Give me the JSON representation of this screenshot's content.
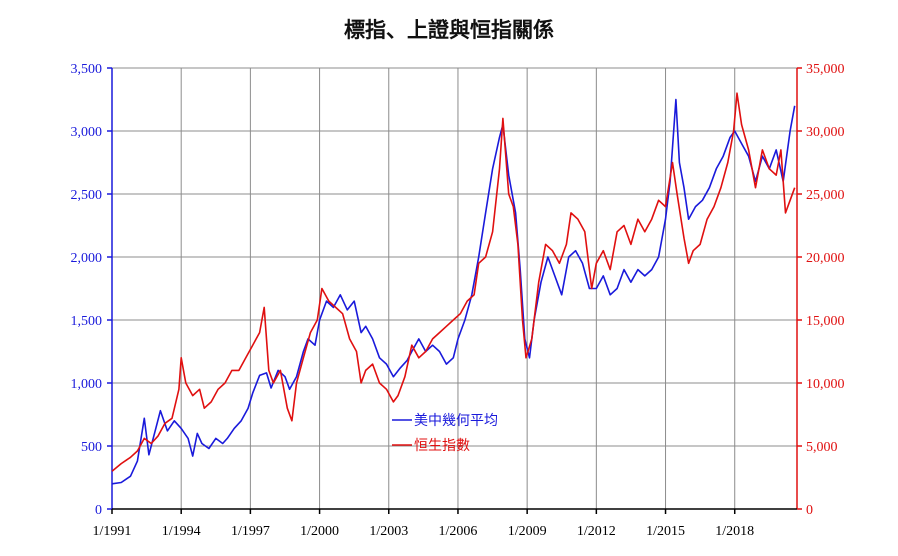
{
  "chart_data": {
    "type": "line",
    "title": "標指、上證與恒指關係",
    "x_labels": [
      "1/1991",
      "1/1994",
      "1/1997",
      "1/2000",
      "1/2003",
      "1/2006",
      "1/2009",
      "1/2012",
      "1/2015",
      "1/2018"
    ],
    "x_range": [
      1991.0,
      2020.7
    ],
    "y_left": {
      "range": [
        0,
        3500
      ],
      "ticks": [
        "0",
        "500",
        "1,000",
        "1,500",
        "2,000",
        "2,500",
        "3,000",
        "3,500"
      ],
      "color": "#1a1adb"
    },
    "y_right": {
      "range": [
        0,
        35000
      ],
      "ticks": [
        "0",
        "5,000",
        "10,000",
        "15,000",
        "20,000",
        "25,000",
        "30,000",
        "35,000"
      ],
      "color": "#e01010"
    },
    "grid": true,
    "legend_position": "center",
    "series": [
      {
        "name": "美中幾何平均",
        "axis": "left",
        "color": "#1a1adb",
        "points": [
          [
            1991.0,
            200
          ],
          [
            1991.4,
            210
          ],
          [
            1991.8,
            260
          ],
          [
            1992.1,
            380
          ],
          [
            1992.4,
            720
          ],
          [
            1992.6,
            430
          ],
          [
            1992.9,
            640
          ],
          [
            1993.1,
            780
          ],
          [
            1993.4,
            620
          ],
          [
            1993.7,
            700
          ],
          [
            1994.0,
            640
          ],
          [
            1994.3,
            560
          ],
          [
            1994.5,
            420
          ],
          [
            1994.7,
            600
          ],
          [
            1994.9,
            520
          ],
          [
            1995.2,
            480
          ],
          [
            1995.5,
            560
          ],
          [
            1995.8,
            520
          ],
          [
            1996.0,
            560
          ],
          [
            1996.3,
            640
          ],
          [
            1996.6,
            700
          ],
          [
            1996.9,
            800
          ],
          [
            1997.1,
            920
          ],
          [
            1997.4,
            1060
          ],
          [
            1997.7,
            1080
          ],
          [
            1997.9,
            960
          ],
          [
            1998.2,
            1100
          ],
          [
            1998.5,
            1050
          ],
          [
            1998.7,
            950
          ],
          [
            1999.0,
            1050
          ],
          [
            1999.3,
            1250
          ],
          [
            1999.5,
            1350
          ],
          [
            1999.8,
            1300
          ],
          [
            2000.0,
            1500
          ],
          [
            2000.3,
            1650
          ],
          [
            2000.6,
            1600
          ],
          [
            2000.9,
            1700
          ],
          [
            2001.2,
            1580
          ],
          [
            2001.5,
            1650
          ],
          [
            2001.8,
            1400
          ],
          [
            2002.0,
            1450
          ],
          [
            2002.3,
            1350
          ],
          [
            2002.6,
            1200
          ],
          [
            2002.9,
            1150
          ],
          [
            2003.2,
            1050
          ],
          [
            2003.5,
            1120
          ],
          [
            2003.8,
            1180
          ],
          [
            2004.0,
            1250
          ],
          [
            2004.3,
            1350
          ],
          [
            2004.6,
            1250
          ],
          [
            2004.9,
            1300
          ],
          [
            2005.2,
            1250
          ],
          [
            2005.5,
            1150
          ],
          [
            2005.8,
            1200
          ],
          [
            2006.0,
            1350
          ],
          [
            2006.3,
            1500
          ],
          [
            2006.6,
            1700
          ],
          [
            2006.9,
            2000
          ],
          [
            2007.2,
            2350
          ],
          [
            2007.5,
            2700
          ],
          [
            2007.8,
            2950
          ],
          [
            2007.95,
            3050
          ],
          [
            2008.2,
            2650
          ],
          [
            2008.5,
            2350
          ],
          [
            2008.7,
            1900
          ],
          [
            2008.9,
            1350
          ],
          [
            2009.1,
            1200
          ],
          [
            2009.3,
            1500
          ],
          [
            2009.6,
            1800
          ],
          [
            2009.9,
            2000
          ],
          [
            2010.2,
            1850
          ],
          [
            2010.5,
            1700
          ],
          [
            2010.8,
            2000
          ],
          [
            2011.1,
            2050
          ],
          [
            2011.4,
            1950
          ],
          [
            2011.7,
            1750
          ],
          [
            2012.0,
            1750
          ],
          [
            2012.3,
            1850
          ],
          [
            2012.6,
            1700
          ],
          [
            2012.9,
            1750
          ],
          [
            2013.2,
            1900
          ],
          [
            2013.5,
            1800
          ],
          [
            2013.8,
            1900
          ],
          [
            2014.1,
            1850
          ],
          [
            2014.4,
            1900
          ],
          [
            2014.7,
            2000
          ],
          [
            2015.0,
            2300
          ],
          [
            2015.2,
            2600
          ],
          [
            2015.45,
            3250
          ],
          [
            2015.6,
            2750
          ],
          [
            2015.8,
            2550
          ],
          [
            2016.0,
            2300
          ],
          [
            2016.3,
            2400
          ],
          [
            2016.6,
            2450
          ],
          [
            2016.9,
            2550
          ],
          [
            2017.2,
            2700
          ],
          [
            2017.5,
            2800
          ],
          [
            2017.8,
            2950
          ],
          [
            2018.0,
            3000
          ],
          [
            2018.3,
            2900
          ],
          [
            2018.6,
            2800
          ],
          [
            2018.9,
            2600
          ],
          [
            2019.2,
            2800
          ],
          [
            2019.5,
            2700
          ],
          [
            2019.8,
            2850
          ],
          [
            2020.1,
            2600
          ],
          [
            2020.4,
            3000
          ],
          [
            2020.6,
            3200
          ]
        ]
      },
      {
        "name": "恒生指數",
        "axis": "right",
        "color": "#e01010",
        "points": [
          [
            1991.0,
            3000
          ],
          [
            1991.4,
            3600
          ],
          [
            1991.8,
            4100
          ],
          [
            1992.1,
            4600
          ],
          [
            1992.4,
            5600
          ],
          [
            1992.7,
            5200
          ],
          [
            1993.0,
            5800
          ],
          [
            1993.3,
            6800
          ],
          [
            1993.6,
            7200
          ],
          [
            1993.9,
            9500
          ],
          [
            1994.0,
            12000
          ],
          [
            1994.2,
            10000
          ],
          [
            1994.5,
            9000
          ],
          [
            1994.8,
            9500
          ],
          [
            1995.0,
            8000
          ],
          [
            1995.3,
            8500
          ],
          [
            1995.6,
            9500
          ],
          [
            1995.9,
            10000
          ],
          [
            1996.2,
            11000
          ],
          [
            1996.5,
            11000
          ],
          [
            1996.8,
            12000
          ],
          [
            1997.1,
            13000
          ],
          [
            1997.4,
            14000
          ],
          [
            1997.6,
            16000
          ],
          [
            1997.8,
            11000
          ],
          [
            1998.0,
            10000
          ],
          [
            1998.3,
            11000
          ],
          [
            1998.6,
            8000
          ],
          [
            1998.8,
            7000
          ],
          [
            1999.0,
            10000
          ],
          [
            1999.3,
            12000
          ],
          [
            1999.6,
            14000
          ],
          [
            1999.9,
            15000
          ],
          [
            2000.1,
            17500
          ],
          [
            2000.4,
            16500
          ],
          [
            2000.7,
            16000
          ],
          [
            2001.0,
            15500
          ],
          [
            2001.3,
            13500
          ],
          [
            2001.6,
            12500
          ],
          [
            2001.8,
            10000
          ],
          [
            2002.0,
            11000
          ],
          [
            2002.3,
            11500
          ],
          [
            2002.6,
            10000
          ],
          [
            2002.9,
            9500
          ],
          [
            2003.2,
            8500
          ],
          [
            2003.4,
            9000
          ],
          [
            2003.7,
            10500
          ],
          [
            2004.0,
            13000
          ],
          [
            2004.3,
            12000
          ],
          [
            2004.6,
            12500
          ],
          [
            2004.9,
            13500
          ],
          [
            2005.2,
            14000
          ],
          [
            2005.5,
            14500
          ],
          [
            2005.8,
            15000
          ],
          [
            2006.1,
            15500
          ],
          [
            2006.4,
            16500
          ],
          [
            2006.7,
            17000
          ],
          [
            2006.9,
            19500
          ],
          [
            2007.2,
            20000
          ],
          [
            2007.5,
            22000
          ],
          [
            2007.8,
            27000
          ],
          [
            2007.95,
            31000
          ],
          [
            2008.2,
            25000
          ],
          [
            2008.4,
            24000
          ],
          [
            2008.6,
            21000
          ],
          [
            2008.8,
            15000
          ],
          [
            2008.95,
            12000
          ],
          [
            2009.2,
            13500
          ],
          [
            2009.5,
            18000
          ],
          [
            2009.8,
            21000
          ],
          [
            2010.1,
            20500
          ],
          [
            2010.4,
            19500
          ],
          [
            2010.7,
            21000
          ],
          [
            2010.9,
            23500
          ],
          [
            2011.2,
            23000
          ],
          [
            2011.5,
            22000
          ],
          [
            2011.8,
            17500
          ],
          [
            2012.0,
            19500
          ],
          [
            2012.3,
            20500
          ],
          [
            2012.6,
            19000
          ],
          [
            2012.9,
            22000
          ],
          [
            2013.2,
            22500
          ],
          [
            2013.5,
            21000
          ],
          [
            2013.8,
            23000
          ],
          [
            2014.1,
            22000
          ],
          [
            2014.4,
            23000
          ],
          [
            2014.7,
            24500
          ],
          [
            2015.0,
            24000
          ],
          [
            2015.3,
            27500
          ],
          [
            2015.5,
            25000
          ],
          [
            2015.8,
            21500
          ],
          [
            2016.0,
            19500
          ],
          [
            2016.2,
            20500
          ],
          [
            2016.5,
            21000
          ],
          [
            2016.8,
            23000
          ],
          [
            2017.1,
            24000
          ],
          [
            2017.4,
            25500
          ],
          [
            2017.7,
            27500
          ],
          [
            2017.95,
            30000
          ],
          [
            2018.1,
            33000
          ],
          [
            2018.3,
            30500
          ],
          [
            2018.6,
            28500
          ],
          [
            2018.9,
            25500
          ],
          [
            2019.2,
            28500
          ],
          [
            2019.5,
            27000
          ],
          [
            2019.8,
            26500
          ],
          [
            2020.0,
            28500
          ],
          [
            2020.2,
            23500
          ],
          [
            2020.4,
            24500
          ],
          [
            2020.6,
            25500
          ]
        ]
      }
    ]
  }
}
